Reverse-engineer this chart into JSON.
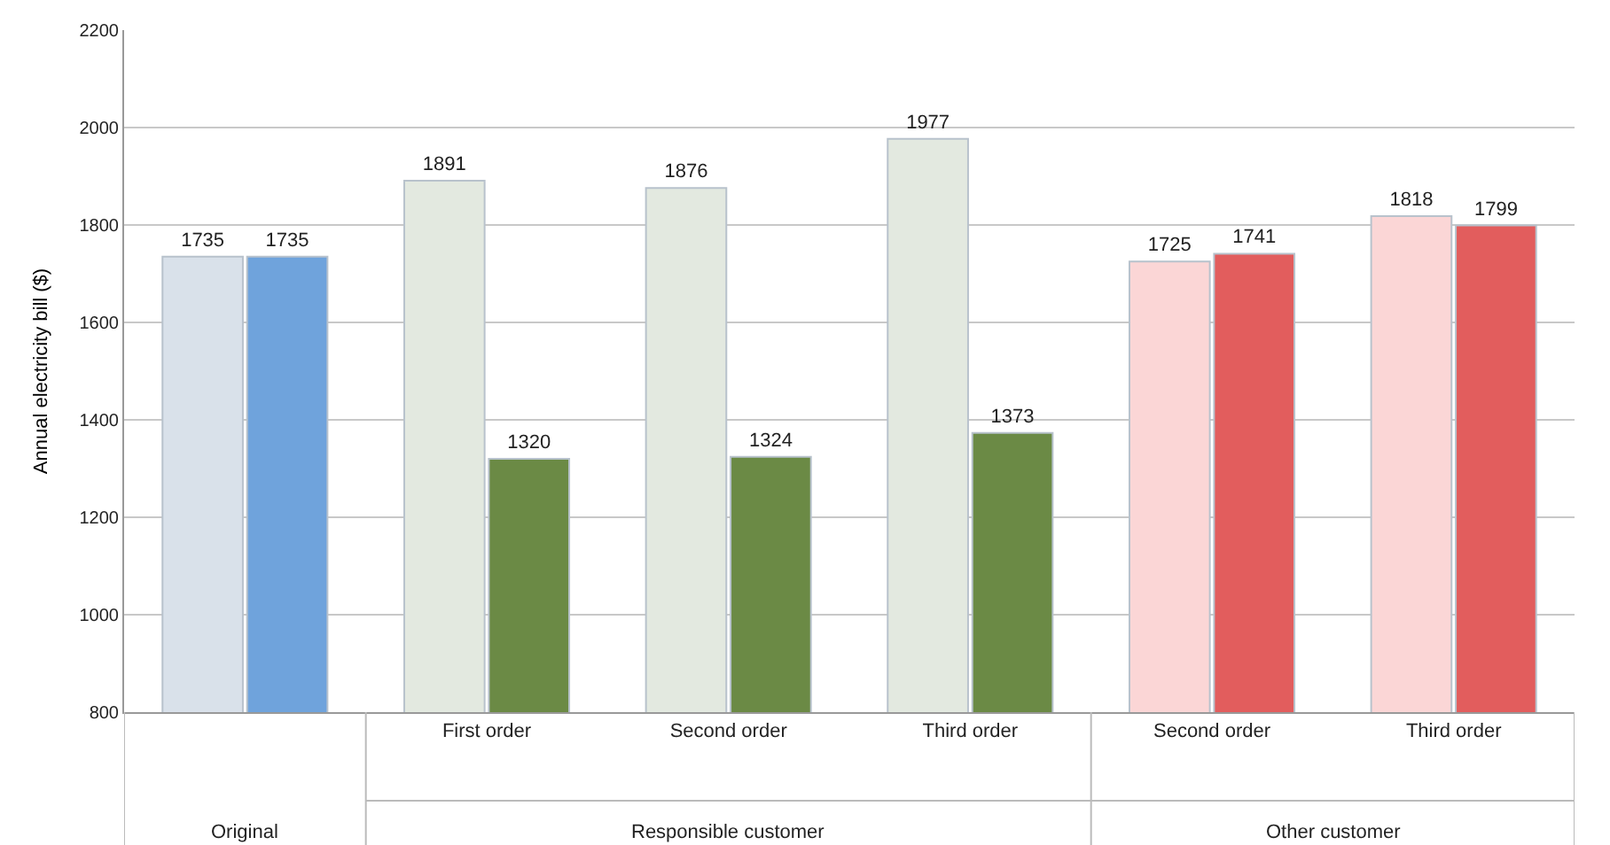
{
  "chart_data": {
    "type": "bar",
    "ylabel": "Annual electricity bill ($)",
    "categories": [
      null,
      "First order",
      "Second order",
      "Third order",
      "Second order",
      "Third order"
    ],
    "series": [
      {
        "colors": [
          "#d9e1ea",
          "#e3e9e0",
          "#e3e9e0",
          "#e3e9e0",
          "#fbd6d6",
          "#fbd6d6"
        ],
        "values": [
          1735,
          1891,
          1876,
          1977,
          1725,
          1818
        ]
      },
      {
        "colors": [
          "#6fa3dc",
          "#6b8a45",
          "#6b8a45",
          "#6b8a45",
          "#e25d5d",
          "#e25d5d"
        ],
        "values": [
          1735,
          1320,
          1324,
          1373,
          1741,
          1799
        ]
      }
    ],
    "ylim": [
      800,
      2200
    ],
    "yticks": [
      800,
      1000,
      1200,
      1400,
      1600,
      1800,
      2000,
      2200
    ],
    "grid": "y",
    "data_labels": true,
    "annotations": [
      "Original",
      "Responsible customer",
      "Other customer"
    ]
  }
}
